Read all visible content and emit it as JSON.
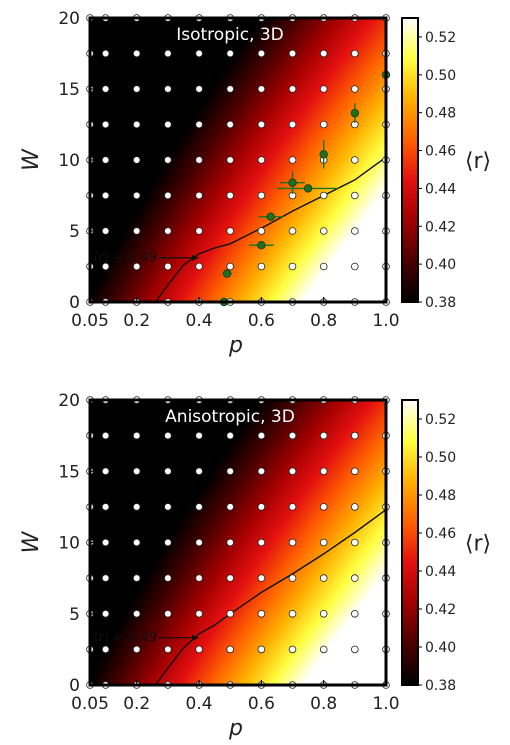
{
  "colors": {
    "colormap": [
      "#000000",
      "#4a0000",
      "#a00000",
      "#e41010",
      "#ff6000",
      "#ffb000",
      "#ffff40",
      "#ffffff"
    ],
    "marker_fill": "#ffffff",
    "marker_stroke": "#222222",
    "green_point": "#1f6f1f",
    "green_edge": "#0d3d0d",
    "frame": "#000000",
    "contour": "#111111"
  },
  "colorbar": {
    "label": "⟨r⟩",
    "range": [
      0.38,
      0.53
    ],
    "ticks": [
      0.38,
      0.4,
      0.42,
      0.44,
      0.46,
      0.48,
      0.5,
      0.52
    ],
    "tick_labels": [
      "0.38",
      "0.40",
      "0.42",
      "0.44",
      "0.46",
      "0.48",
      "0.50",
      "0.52"
    ]
  },
  "chart_data": [
    {
      "type": "heatmap",
      "title": "Isotropic, 3D",
      "xlabel": "p",
      "ylabel": "W",
      "xlim": [
        0.05,
        1.0
      ],
      "ylim": [
        0,
        20
      ],
      "x_ticks": [
        0.05,
        0.2,
        0.4,
        0.6,
        0.8,
        1.0
      ],
      "x_tick_labels": [
        "0.05",
        "0.2",
        "0.4",
        "0.6",
        "0.8",
        "1.0"
      ],
      "y_ticks": [
        0,
        5,
        10,
        15,
        20
      ],
      "y_tick_labels": [
        "0",
        "5",
        "10",
        "15",
        "20"
      ],
      "sample_points": {
        "p": [
          0.05,
          0.1,
          0.2,
          0.3,
          0.4,
          0.5,
          0.6,
          0.7,
          0.8,
          0.9,
          1.0
        ],
        "W": [
          0,
          2.5,
          5,
          7.5,
          10,
          12.5,
          15,
          17.5,
          20
        ]
      },
      "contour": {
        "level_label": "⟨r⟩ = 0.49",
        "points": [
          [
            0.26,
            0
          ],
          [
            0.3,
            1.2
          ],
          [
            0.35,
            2.6
          ],
          [
            0.4,
            3.4
          ],
          [
            0.45,
            3.8
          ],
          [
            0.5,
            4.1
          ],
          [
            0.6,
            5.2
          ],
          [
            0.7,
            6.4
          ],
          [
            0.8,
            7.5
          ],
          [
            0.9,
            8.6
          ],
          [
            1.0,
            10.2
          ]
        ]
      },
      "green_points": [
        {
          "p": 0.48,
          "W": 0,
          "p_err": 0,
          "W_err": 0
        },
        {
          "p": 0.49,
          "W": 2.0,
          "p_err": 0.015,
          "W_err": 0
        },
        {
          "p": 0.6,
          "W": 4.0,
          "p_err": 0.04,
          "W_err": 0
        },
        {
          "p": 0.63,
          "W": 6.0,
          "p_err": 0.04,
          "W_err": 0.3
        },
        {
          "p": 0.7,
          "W": 8.4,
          "p_err": 0.04,
          "W_err": 0.8
        },
        {
          "p": 0.75,
          "W": 8.0,
          "p_err": 0.1,
          "W_err": 0
        },
        {
          "p": 0.8,
          "W": 10.4,
          "p_err": 0,
          "W_err": 1.0
        },
        {
          "p": 0.9,
          "W": 13.3,
          "p_err": 0,
          "W_err": 0.7
        },
        {
          "p": 1.0,
          "W": 16.0,
          "p_err": 0,
          "W_err": 0
        }
      ]
    },
    {
      "type": "heatmap",
      "title": "Anisotropic, 3D",
      "xlabel": "p",
      "ylabel": "W",
      "xlim": [
        0.05,
        1.0
      ],
      "ylim": [
        0,
        20
      ],
      "x_ticks": [
        0.05,
        0.2,
        0.4,
        0.6,
        0.8,
        1.0
      ],
      "x_tick_labels": [
        "0.05",
        "0.2",
        "0.4",
        "0.6",
        "0.8",
        "1.0"
      ],
      "y_ticks": [
        0,
        5,
        10,
        15,
        20
      ],
      "y_tick_labels": [
        "0",
        "5",
        "10",
        "15",
        "20"
      ],
      "sample_points": {
        "p": [
          0.05,
          0.1,
          0.2,
          0.3,
          0.4,
          0.5,
          0.6,
          0.7,
          0.8,
          0.9,
          1.0
        ],
        "W": [
          0,
          2.5,
          5,
          7.5,
          10,
          12.5,
          15,
          17.5,
          20
        ]
      },
      "contour": {
        "level_label": "⟨r⟩ = 0.49",
        "points": [
          [
            0.26,
            0
          ],
          [
            0.3,
            1.2
          ],
          [
            0.35,
            2.6
          ],
          [
            0.4,
            3.6
          ],
          [
            0.45,
            4.2
          ],
          [
            0.5,
            5.0
          ],
          [
            0.6,
            6.5
          ],
          [
            0.7,
            7.8
          ],
          [
            0.8,
            9.2
          ],
          [
            0.9,
            10.7
          ],
          [
            1.0,
            12.3
          ]
        ]
      },
      "green_points": []
    }
  ]
}
